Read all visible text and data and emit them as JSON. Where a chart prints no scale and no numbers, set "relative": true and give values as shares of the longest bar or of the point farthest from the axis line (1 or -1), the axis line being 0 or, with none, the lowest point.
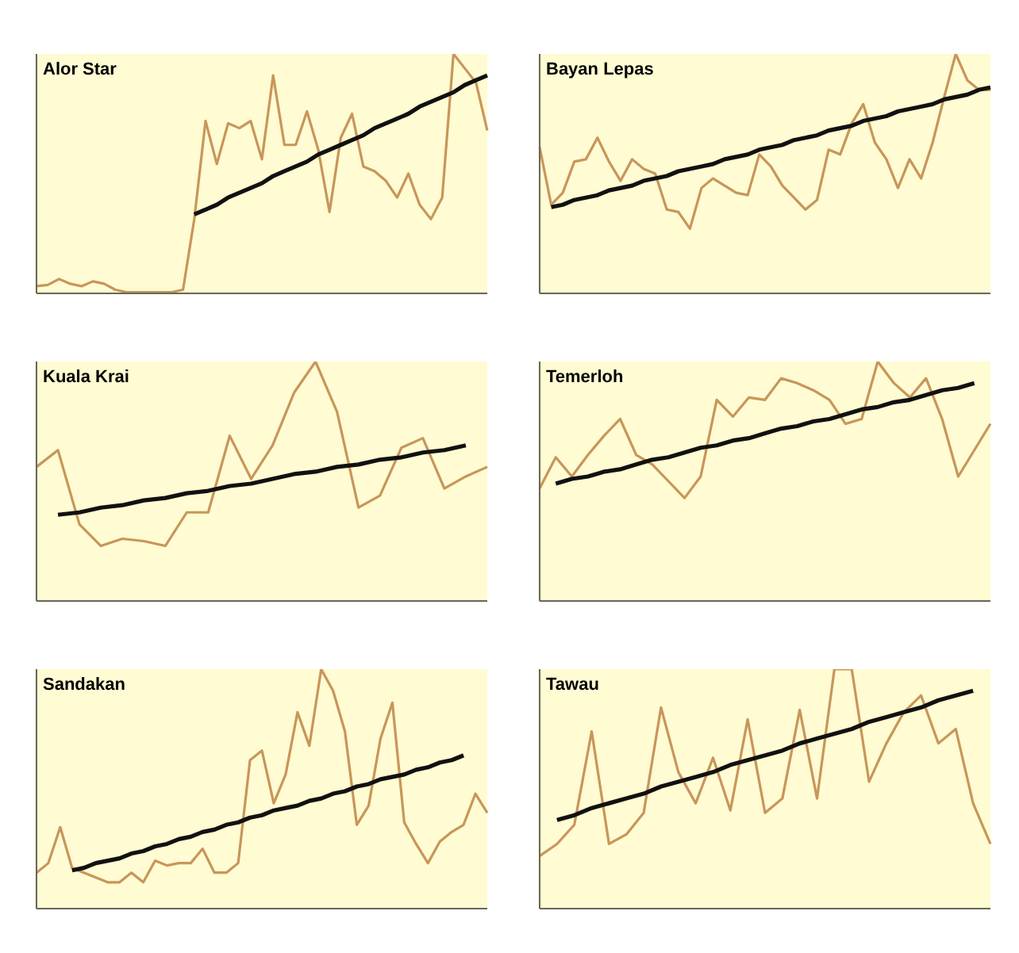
{
  "chart_data": [
    {
      "type": "line",
      "title": "Alor Star",
      "relative": true,
      "tick_labels": false,
      "categories": [
        null,
        null,
        null,
        null,
        null,
        null,
        null,
        null,
        null,
        null,
        null,
        null,
        null,
        null,
        null,
        null,
        null,
        null,
        null,
        null,
        null,
        null,
        null,
        null,
        null,
        null,
        null,
        null,
        null,
        null,
        null,
        null,
        null,
        null,
        null,
        null,
        null,
        null,
        null,
        null,
        null
      ],
      "series": [
        {
          "color": "#c8965a",
          "values": [
            0.03,
            0.035,
            0.06,
            0.04,
            0.03,
            0.05,
            0.04,
            0.015,
            0.005,
            0.005,
            0.005,
            0.005,
            0.005,
            0.015,
            0.31,
            0.72,
            0.54,
            0.71,
            0.69,
            0.72,
            0.56,
            0.91,
            0.62,
            0.62,
            0.76,
            0.6,
            0.34,
            0.65,
            0.75,
            0.53,
            0.51,
            0.47,
            0.4,
            0.5,
            0.37,
            0.31,
            0.4,
            1,
            0.94,
            0.88,
            0.68
          ]
        },
        {
          "color": "#111111",
          "values": [
            null,
            null,
            null,
            null,
            null,
            null,
            null,
            null,
            null,
            null,
            null,
            null,
            null,
            null,
            0.33,
            0.35,
            0.37,
            0.4,
            0.42,
            0.44,
            0.46,
            0.49,
            0.51,
            0.53,
            0.55,
            0.58,
            0.6,
            0.62,
            0.64,
            0.66,
            0.69,
            0.71,
            0.73,
            0.75,
            0.78,
            0.8,
            0.82,
            0.84,
            0.87,
            0.89,
            0.91
          ]
        }
      ]
    },
    {
      "type": "line",
      "title": "Bayan Lepas",
      "relative": true,
      "tick_labels": false,
      "categories": [
        null,
        null,
        null,
        null,
        null,
        null,
        null,
        null,
        null,
        null,
        null,
        null,
        null,
        null,
        null,
        null,
        null,
        null,
        null,
        null,
        null,
        null,
        null,
        null,
        null,
        null,
        null,
        null,
        null,
        null,
        null,
        null,
        null,
        null,
        null,
        null,
        null,
        null,
        null,
        null
      ],
      "series": [
        {
          "color": "#c8965a",
          "values": [
            0.61,
            0.37,
            0.42,
            0.55,
            0.56,
            0.65,
            0.55,
            0.47,
            0.56,
            0.52,
            0.5,
            0.35,
            0.34,
            0.27,
            0.44,
            0.48,
            0.45,
            0.42,
            0.41,
            0.58,
            0.53,
            0.45,
            0.4,
            0.35,
            0.39,
            0.6,
            0.58,
            0.71,
            0.79,
            0.63,
            0.56,
            0.44,
            0.56,
            0.48,
            0.63,
            0.82,
            1,
            0.89,
            0.85,
            0.85
          ]
        },
        {
          "color": "#111111",
          "values": [
            null,
            0.36,
            0.37,
            0.39,
            0.4,
            0.41,
            0.43,
            0.44,
            0.45,
            0.47,
            0.48,
            0.49,
            0.51,
            0.52,
            0.53,
            0.54,
            0.56,
            0.57,
            0.58,
            0.6,
            0.61,
            0.62,
            0.64,
            0.65,
            0.66,
            0.68,
            0.69,
            0.7,
            0.72,
            0.73,
            0.74,
            0.76,
            0.77,
            0.78,
            0.79,
            0.81,
            0.82,
            0.83,
            0.85,
            0.86
          ]
        }
      ]
    },
    {
      "type": "line",
      "title": "Kuala Krai",
      "relative": true,
      "tick_labels": false,
      "categories": [
        null,
        null,
        null,
        null,
        null,
        null,
        null,
        null,
        null,
        null,
        null,
        null,
        null,
        null,
        null,
        null,
        null,
        null,
        null,
        null,
        null,
        null
      ],
      "series": [
        {
          "color": "#c8965a",
          "values": [
            0.56,
            0.63,
            0.32,
            0.23,
            0.26,
            0.25,
            0.23,
            0.37,
            0.37,
            0.69,
            0.51,
            0.65,
            0.87,
            1,
            0.79,
            0.39,
            0.44,
            0.64,
            0.68,
            0.47,
            0.52,
            0.56
          ]
        },
        {
          "color": "#111111",
          "values": [
            null,
            0.36,
            0.37,
            0.39,
            0.4,
            0.42,
            0.43,
            0.45,
            0.46,
            0.48,
            0.49,
            0.51,
            0.53,
            0.54,
            0.56,
            0.57,
            0.59,
            0.6,
            0.62,
            0.63,
            0.65,
            null
          ]
        }
      ]
    },
    {
      "type": "line",
      "title": "Temerloh",
      "relative": true,
      "tick_labels": false,
      "categories": [
        null,
        null,
        null,
        null,
        null,
        null,
        null,
        null,
        null,
        null,
        null,
        null,
        null,
        null,
        null,
        null,
        null,
        null,
        null,
        null,
        null,
        null,
        null,
        null,
        null,
        null,
        null,
        null,
        null
      ],
      "series": [
        {
          "color": "#c8965a",
          "values": [
            0.47,
            0.6,
            0.52,
            0.61,
            0.69,
            0.76,
            0.61,
            0.57,
            0.5,
            0.43,
            0.52,
            0.84,
            0.77,
            0.85,
            0.84,
            0.93,
            0.91,
            0.88,
            0.84,
            0.74,
            0.76,
            1,
            0.91,
            0.85,
            0.93,
            0.76,
            0.52,
            0.63,
            0.74
          ]
        },
        {
          "color": "#111111",
          "values": [
            null,
            0.49,
            0.51,
            0.52,
            0.54,
            0.55,
            0.57,
            0.59,
            0.6,
            0.62,
            0.64,
            0.65,
            0.67,
            0.68,
            0.7,
            0.72,
            0.73,
            0.75,
            0.76,
            0.78,
            0.8,
            0.81,
            0.83,
            0.84,
            0.86,
            0.88,
            0.89,
            0.91,
            null
          ]
        }
      ]
    },
    {
      "type": "line",
      "title": "Sandakan",
      "relative": true,
      "tick_labels": false,
      "categories": [
        null,
        null,
        null,
        null,
        null,
        null,
        null,
        null,
        null,
        null,
        null,
        null,
        null,
        null,
        null,
        null,
        null,
        null,
        null,
        null,
        null,
        null,
        null,
        null,
        null,
        null,
        null,
        null,
        null,
        null,
        null,
        null,
        null,
        null,
        null,
        null,
        null,
        null,
        null
      ],
      "series": [
        {
          "color": "#c8965a",
          "values": [
            0.15,
            0.19,
            0.34,
            0.17,
            0.15,
            0.13,
            0.11,
            0.11,
            0.15,
            0.11,
            0.2,
            0.18,
            0.19,
            0.19,
            0.25,
            0.15,
            0.15,
            0.19,
            0.62,
            0.66,
            0.44,
            0.56,
            0.82,
            0.68,
            1,
            0.91,
            0.74,
            0.35,
            0.43,
            0.71,
            0.86,
            0.36,
            0.27,
            0.19,
            0.28,
            0.32,
            0.35,
            0.48,
            0.4
          ]
        },
        {
          "color": "#111111",
          "values": [
            null,
            null,
            null,
            0.16,
            0.17,
            0.19,
            0.2,
            0.21,
            0.23,
            0.24,
            0.26,
            0.27,
            0.29,
            0.3,
            0.32,
            0.33,
            0.35,
            0.36,
            0.38,
            0.39,
            0.41,
            0.42,
            0.43,
            0.45,
            0.46,
            0.48,
            0.49,
            0.51,
            0.52,
            0.54,
            0.55,
            0.56,
            0.58,
            0.59,
            0.61,
            0.62,
            0.64,
            null,
            null
          ]
        }
      ]
    },
    {
      "type": "line",
      "title": "Tawau",
      "relative": true,
      "tick_labels": false,
      "categories": [
        null,
        null,
        null,
        null,
        null,
        null,
        null,
        null,
        null,
        null,
        null,
        null,
        null,
        null,
        null,
        null,
        null,
        null,
        null,
        null,
        null,
        null,
        null,
        null,
        null,
        null,
        null
      ],
      "series": [
        {
          "color": "#c8965a",
          "values": [
            0.22,
            0.27,
            0.35,
            0.74,
            0.27,
            0.31,
            0.4,
            0.84,
            0.57,
            0.44,
            0.63,
            0.41,
            0.79,
            0.4,
            0.46,
            0.83,
            0.46,
            1,
            1,
            0.53,
            0.69,
            0.82,
            0.89,
            0.69,
            0.75,
            0.44,
            0.27
          ]
        },
        {
          "color": "#111111",
          "values": [
            null,
            0.37,
            0.39,
            0.42,
            0.44,
            0.46,
            0.48,
            0.51,
            0.53,
            0.55,
            0.57,
            0.6,
            0.62,
            0.64,
            0.66,
            0.69,
            0.71,
            0.73,
            0.75,
            0.78,
            0.8,
            0.82,
            0.84,
            0.87,
            0.89,
            0.91,
            null
          ]
        }
      ]
    }
  ]
}
